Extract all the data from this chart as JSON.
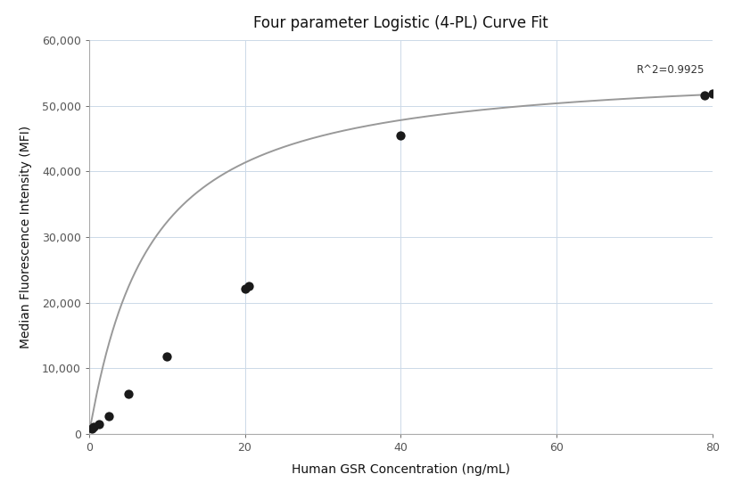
{
  "title": "Four parameter Logistic (4-PL) Curve Fit",
  "xlabel": "Human GSR Concentration (ng/mL)",
  "ylabel": "Median Fluorescence Intensity (MFI)",
  "scatter_x": [
    0.3125,
    0.625,
    1.25,
    2.5,
    5.0,
    10.0,
    20.0,
    20.5,
    40.0,
    79.0,
    80.0
  ],
  "scatter_y": [
    800,
    1100,
    1500,
    2700,
    6100,
    11800,
    22200,
    22500,
    45500,
    51500,
    51800
  ],
  "r_squared": "R^2=0.9925",
  "xlim": [
    0,
    80
  ],
  "ylim": [
    0,
    60000
  ],
  "yticks": [
    0,
    10000,
    20000,
    30000,
    40000,
    50000,
    60000
  ],
  "xticks": [
    0,
    20,
    40,
    60,
    80
  ],
  "curve_color": "#999999",
  "scatter_color": "#1a1a1a",
  "background_color": "#ffffff",
  "grid_color": "#ccd9e8",
  "4pl_A": 200,
  "4pl_B": 1.05,
  "4pl_C": 7.5,
  "4pl_D": 56000,
  "r2_x": 79,
  "r2_y": 54500,
  "title_fontsize": 12,
  "label_fontsize": 10,
  "tick_fontsize": 9
}
